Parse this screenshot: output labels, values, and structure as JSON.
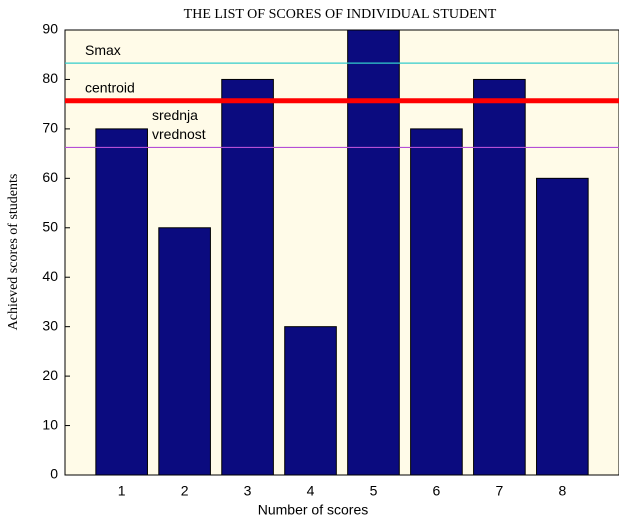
{
  "chart_data": {
    "type": "bar",
    "title": "THE LIST OF SCORES OF INDIVIDUAL STUDENT",
    "xlabel": "Number of scores",
    "ylabel": "Achieved scores of students",
    "x": [
      1,
      2,
      3,
      4,
      5,
      6,
      7,
      8
    ],
    "values": [
      70,
      50,
      80,
      30,
      90,
      70,
      80,
      60
    ],
    "color": "#0b0b7f",
    "xlim": [
      0.1,
      8.9
    ],
    "xticks": [
      1,
      2,
      3,
      4,
      5,
      6,
      7,
      8
    ],
    "ylim": [
      0,
      90
    ],
    "yticks": [
      0,
      10,
      20,
      30,
      40,
      50,
      60,
      70,
      80,
      90
    ],
    "lines": [
      {
        "label": [
          "Smax"
        ],
        "value": 83.3,
        "color": "#33cccc"
      },
      {
        "label": [
          "centroid"
        ],
        "value": 75.7,
        "color": "#ff0000"
      },
      {
        "label": [
          "srednja",
          "vrednost"
        ],
        "value": 66.25,
        "color": "#b44fd6"
      }
    ]
  }
}
